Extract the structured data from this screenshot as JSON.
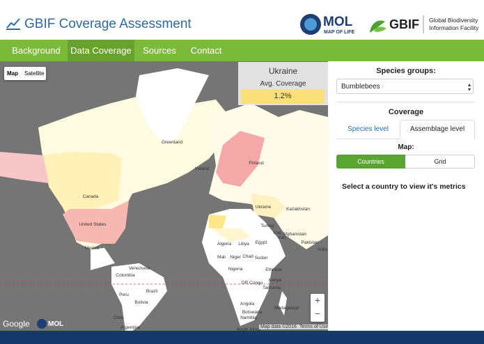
{
  "header": {
    "title": "GBIF Coverage Assessment",
    "mol_logo": "MOL",
    "mol_sub": "MAP OF LIFE",
    "gbif_logo": "GBIF",
    "gbif_sub1": "Global Biodiversity",
    "gbif_sub2": "Information Facility"
  },
  "nav": [
    "Background",
    "Data Coverage",
    "Sources",
    "Contact"
  ],
  "map": {
    "type_buttons": [
      "Map",
      "Satellite"
    ],
    "labels": [
      "Greenland",
      "Canada",
      "United States",
      "Mexico",
      "Venezuela",
      "Colombia",
      "Peru",
      "Brazil",
      "Bolivia",
      "Chile",
      "Argentina",
      "Finland",
      "Ukraine",
      "Kazakhstan",
      "Turkey",
      "Afghanistan",
      "Pakistan",
      "Iran",
      "Iraq",
      "Egypt",
      "Libya",
      "Algeria",
      "Mali",
      "Niger",
      "Chad",
      "Sudan",
      "Ethiopia",
      "Nigeria",
      "DR Congo",
      "Kenya",
      "Tanzania",
      "Angola",
      "Namibia",
      "Botswana",
      "South Africa",
      "Madagascar",
      "India",
      "Iceland"
    ],
    "zoom_in": "+",
    "zoom_out": "−",
    "google": "Google",
    "mol": "MOL",
    "footer_data": "Map data ©2016",
    "footer_terms": "Terms of Use"
  },
  "info": {
    "country": "Ukraine",
    "metric": "Avg. Coverage",
    "value": "1.2%"
  },
  "sidebar": {
    "species_label": "Species groups:",
    "species_value": "Bumblebees",
    "coverage_label": "Coverage",
    "tabs": [
      "Species level",
      "Assemblage level"
    ],
    "map_label": "Map:",
    "map_buttons": [
      "Countries",
      "Grid"
    ],
    "message": "Select a country to view it's metrics"
  }
}
